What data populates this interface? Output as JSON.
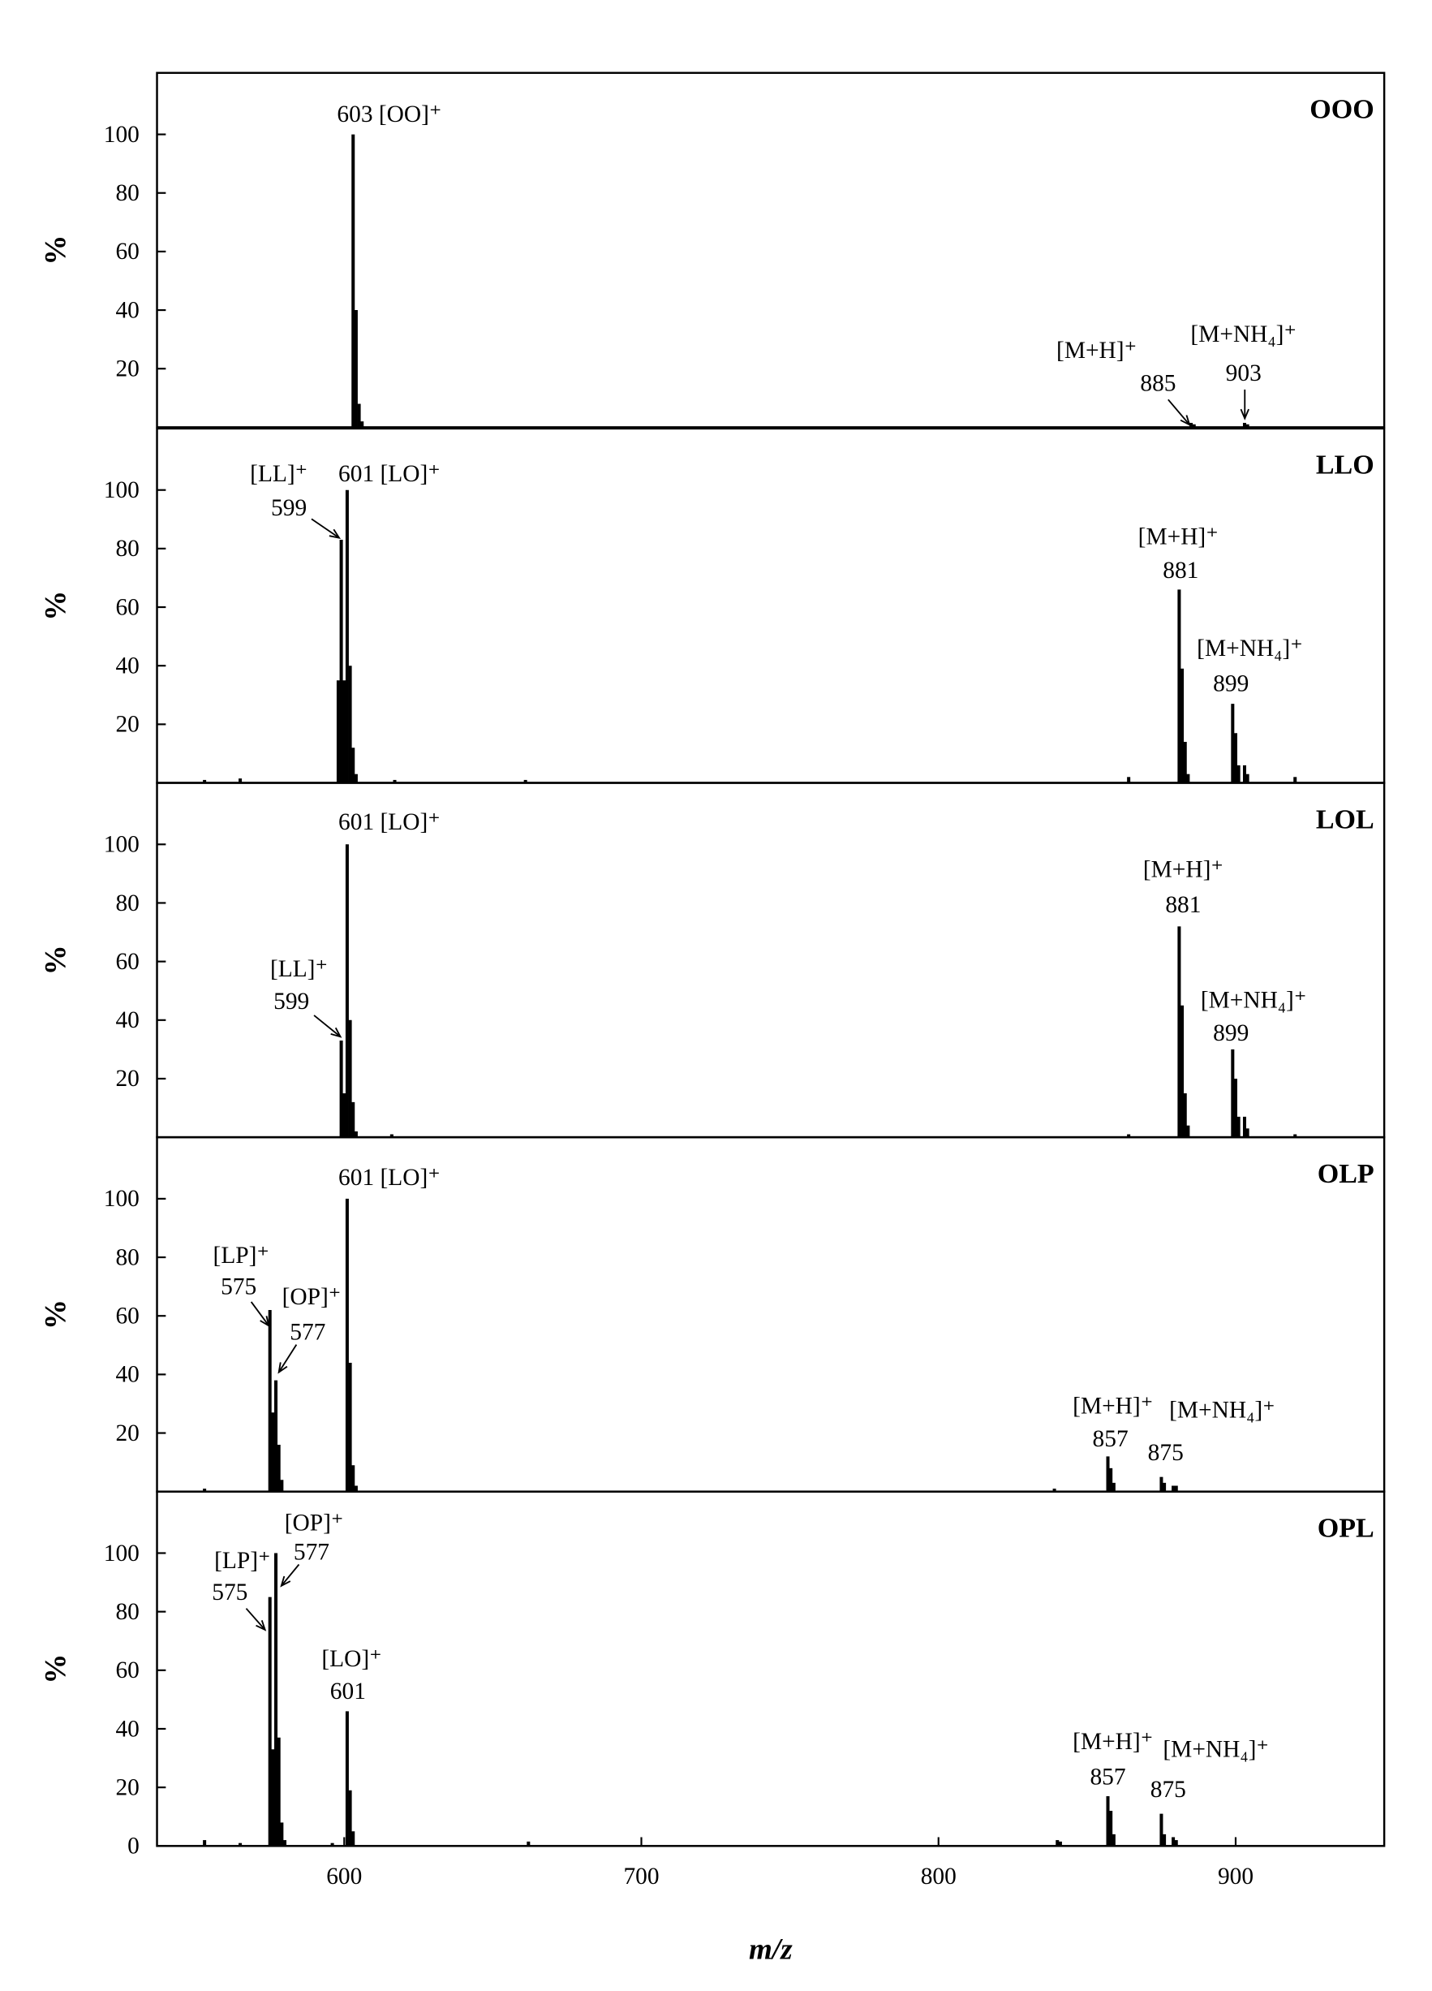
{
  "chart_data": [
    {
      "type": "bar",
      "title": "OOO",
      "ylabel": "%",
      "color": "#000000",
      "x": [
        603,
        604,
        605,
        606,
        885,
        886,
        903,
        904
      ],
      "values": [
        100,
        40,
        8,
        2,
        1.5,
        1,
        1.5,
        1
      ],
      "xlim": [
        537,
        950
      ],
      "ylim": [
        0,
        121
      ],
      "yticks": [
        20,
        40,
        60,
        80,
        100
      ],
      "annotations": [
        "603 [OO]⁺",
        "[M+H]⁺",
        "885",
        "[M+NH₄]⁺",
        "903"
      ]
    },
    {
      "type": "bar",
      "title": "LLO",
      "ylabel": "%",
      "color": "#000000",
      "x": [
        553,
        565,
        598,
        599,
        600,
        601,
        602,
        603,
        604,
        617,
        661,
        864,
        881,
        882,
        883,
        884,
        899,
        900,
        901,
        903,
        904,
        920
      ],
      "values": [
        1,
        1.5,
        35,
        83,
        35,
        100,
        40,
        12,
        3,
        1,
        1,
        2,
        66,
        39,
        14,
        3,
        27,
        17,
        6,
        6,
        3,
        2
      ],
      "xlim": [
        537,
        950
      ],
      "ylim": [
        0,
        121
      ],
      "yticks": [
        20,
        40,
        60,
        80,
        100
      ],
      "annotations": [
        "[LL]⁺",
        "599",
        "601 [LO]⁺",
        "[M+H]⁺",
        "881",
        "[M+NH₄]⁺",
        "899"
      ]
    },
    {
      "type": "bar",
      "title": "LOL",
      "ylabel": "%",
      "color": "#000000",
      "x": [
        599,
        600,
        601,
        602,
        603,
        604,
        616,
        864,
        881,
        882,
        883,
        884,
        899,
        900,
        901,
        903,
        904,
        920
      ],
      "values": [
        33,
        15,
        100,
        40,
        12,
        2,
        1,
        1,
        72,
        45,
        15,
        4,
        30,
        20,
        7,
        7,
        3,
        1
      ],
      "xlim": [
        537,
        950
      ],
      "ylim": [
        0,
        121
      ],
      "yticks": [
        20,
        40,
        60,
        80,
        100
      ],
      "annotations": [
        "601 [LO]⁺",
        "[LL]⁺",
        "599",
        "[M+H]⁺",
        "881",
        "[M+NH₄]⁺",
        "899"
      ]
    },
    {
      "type": "bar",
      "title": "OLP",
      "ylabel": "%",
      "color": "#000000",
      "x": [
        553,
        575,
        576,
        577,
        578,
        579,
        601,
        602,
        603,
        604,
        839,
        857,
        858,
        859,
        875,
        876,
        879,
        880
      ],
      "values": [
        1,
        62,
        27,
        38,
        16,
        4,
        100,
        44,
        9,
        2,
        1,
        12,
        8,
        3,
        5,
        3,
        2,
        2
      ],
      "xlim": [
        537,
        950
      ],
      "ylim": [
        0,
        121
      ],
      "yticks": [
        20,
        40,
        60,
        80,
        100
      ],
      "annotations": [
        "601 [LO]⁺",
        "[LP]⁺",
        "575",
        "[OP]⁺",
        "577",
        "[M+H]⁺",
        "857",
        "[M+NH₄]⁺",
        "875"
      ]
    },
    {
      "type": "bar",
      "title": "OPL",
      "ylabel": "%",
      "xlabel": "m/z",
      "color": "#000000",
      "x": [
        553,
        565,
        575,
        576,
        577,
        578,
        579,
        580,
        596,
        601,
        602,
        603,
        662,
        840,
        841,
        857,
        858,
        859,
        875,
        876,
        879,
        880
      ],
      "values": [
        2,
        1,
        85,
        33,
        100,
        37,
        8,
        2,
        1,
        46,
        19,
        5,
        1.5,
        2,
        1.5,
        17,
        12,
        4,
        11,
        4,
        3,
        2
      ],
      "xlim": [
        537,
        950
      ],
      "ylim": [
        0,
        121
      ],
      "yticks": [
        0,
        20,
        40,
        60,
        80,
        100
      ],
      "xticks": [
        600,
        700,
        800,
        900
      ],
      "annotations": [
        "[OP]⁺",
        "577",
        "[LP]⁺",
        "575",
        "[LO]⁺",
        "601",
        "[M+H]⁺",
        "857",
        "[M+NH₄]⁺",
        "875"
      ]
    }
  ]
}
